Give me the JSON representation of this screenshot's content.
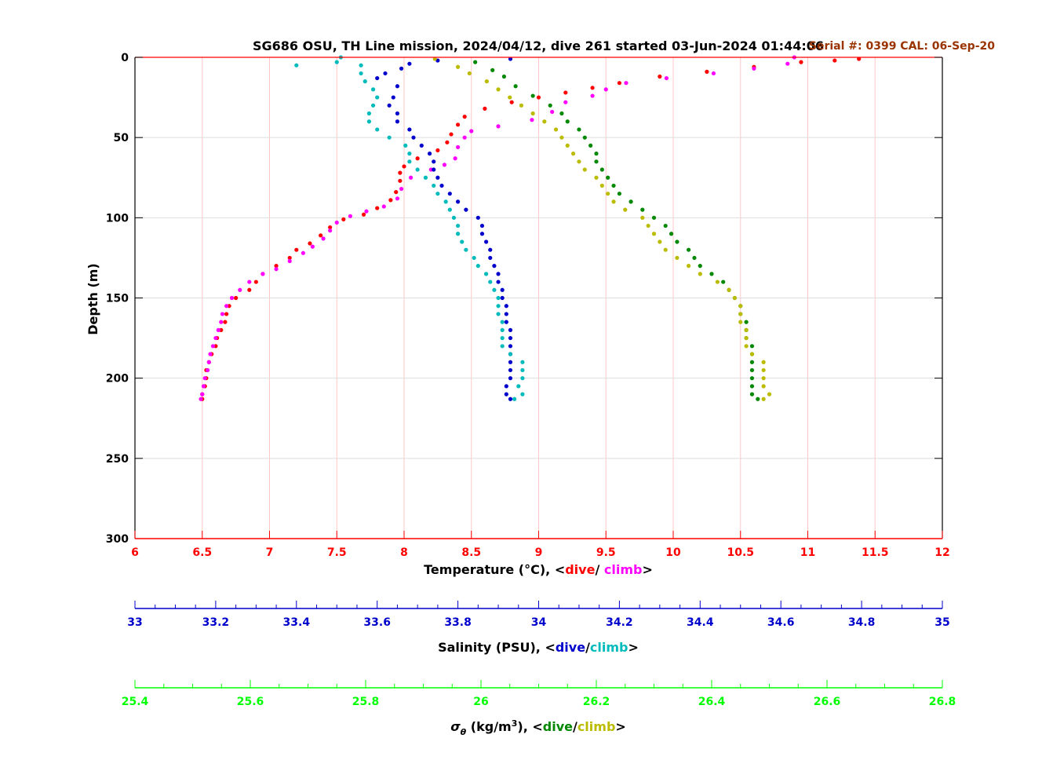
{
  "chart_data": {
    "type": "scatter",
    "title": "SG686 OSU, TH Line mission, 2024/04/12, dive 261 started 03-Jun-2024 01:44:06",
    "subtitle": "Serial #: 0399  CAL: 06-Sep-20",
    "ylabel": "Depth (m)",
    "ylim": [
      0,
      300
    ],
    "y_ticks": [
      "0",
      "50",
      "100",
      "150",
      "200",
      "250",
      "300"
    ],
    "y_reversed": true,
    "grid": true,
    "axes": [
      {
        "id": "temperature",
        "label_prefix": "Temperature (°C), <",
        "label_dive": "dive",
        "label_sep": "/ ",
        "label_climb": "climb",
        "label_suffix": ">",
        "xlim": [
          6,
          12
        ],
        "ticks": [
          "6",
          "6.5",
          "7",
          "7.5",
          "8",
          "8.5",
          "9",
          "9.5",
          "10",
          "10.5",
          "11",
          "11.5",
          "12"
        ],
        "color": "#ff0000"
      },
      {
        "id": "salinity",
        "label_prefix": "Salinity (PSU), <",
        "label_dive": "dive",
        "label_sep": "/",
        "label_climb": "climb",
        "label_suffix": ">",
        "xlim": [
          33,
          35
        ],
        "ticks": [
          "33",
          "33.2",
          "33.4",
          "33.6",
          "33.8",
          "34",
          "34.2",
          "34.4",
          "34.6",
          "34.8",
          "35"
        ],
        "color": "#0000cc"
      },
      {
        "id": "sigma",
        "label_symbol": "σ",
        "label_sub": "θ",
        "label_units": " (kg/m",
        "label_sup": "3",
        "label_close": "), <",
        "label_dive": "dive",
        "label_sep": "/",
        "label_climb": "climb",
        "label_suffix": ">",
        "xlim": [
          25.4,
          26.8
        ],
        "ticks": [
          "25.4",
          "25.6",
          "25.8",
          "26",
          "26.2",
          "26.4",
          "26.6",
          "26.8"
        ],
        "color": "#00ff00"
      }
    ],
    "series": [
      {
        "name": "dive",
        "axis": "temperature",
        "color": "#ff0000",
        "points": [
          [
            11.38,
            1
          ],
          [
            11.2,
            2
          ],
          [
            10.95,
            3
          ],
          [
            10.6,
            6
          ],
          [
            10.25,
            9
          ],
          [
            9.9,
            12
          ],
          [
            9.6,
            16
          ],
          [
            9.4,
            19
          ],
          [
            9.2,
            22
          ],
          [
            9.0,
            25
          ],
          [
            8.8,
            28
          ],
          [
            8.6,
            32
          ],
          [
            8.45,
            37
          ],
          [
            8.4,
            42
          ],
          [
            8.35,
            48
          ],
          [
            8.32,
            53
          ],
          [
            8.25,
            58
          ],
          [
            8.1,
            63
          ],
          [
            8.0,
            68
          ],
          [
            7.97,
            72
          ],
          [
            7.97,
            77
          ],
          [
            7.94,
            84
          ],
          [
            7.9,
            89
          ],
          [
            7.8,
            94
          ],
          [
            7.7,
            98
          ],
          [
            7.55,
            101
          ],
          [
            7.45,
            106
          ],
          [
            7.38,
            111
          ],
          [
            7.3,
            116
          ],
          [
            7.2,
            120
          ],
          [
            7.15,
            125
          ],
          [
            7.05,
            130
          ],
          [
            6.95,
            135
          ],
          [
            6.9,
            140
          ],
          [
            6.85,
            145
          ],
          [
            6.75,
            150
          ],
          [
            6.7,
            155
          ],
          [
            6.68,
            160
          ],
          [
            6.67,
            165
          ],
          [
            6.64,
            170
          ],
          [
            6.61,
            175
          ],
          [
            6.6,
            180
          ],
          [
            6.57,
            185
          ],
          [
            6.55,
            190
          ],
          [
            6.53,
            195
          ],
          [
            6.53,
            200
          ],
          [
            6.52,
            205
          ],
          [
            6.5,
            210
          ],
          [
            6.5,
            213
          ]
        ]
      },
      {
        "name": "climb",
        "axis": "temperature",
        "color": "#ff00ff",
        "points": [
          [
            10.9,
            0
          ],
          [
            10.85,
            4
          ],
          [
            10.6,
            7
          ],
          [
            10.3,
            10
          ],
          [
            9.95,
            13
          ],
          [
            9.65,
            16
          ],
          [
            9.5,
            20
          ],
          [
            9.4,
            24
          ],
          [
            9.2,
            28
          ],
          [
            9.1,
            34
          ],
          [
            8.95,
            39
          ],
          [
            8.7,
            43
          ],
          [
            8.5,
            46
          ],
          [
            8.45,
            50
          ],
          [
            8.4,
            56
          ],
          [
            8.38,
            63
          ],
          [
            8.3,
            67
          ],
          [
            8.2,
            70
          ],
          [
            8.05,
            75
          ],
          [
            7.98,
            82
          ],
          [
            7.95,
            88
          ],
          [
            7.85,
            93
          ],
          [
            7.72,
            96
          ],
          [
            7.6,
            99
          ],
          [
            7.5,
            103
          ],
          [
            7.45,
            108
          ],
          [
            7.4,
            113
          ],
          [
            7.32,
            118
          ],
          [
            7.25,
            122
          ],
          [
            7.15,
            127
          ],
          [
            7.05,
            132
          ],
          [
            6.95,
            135
          ],
          [
            6.85,
            140
          ],
          [
            6.78,
            145
          ],
          [
            6.72,
            150
          ],
          [
            6.68,
            155
          ],
          [
            6.65,
            160
          ],
          [
            6.64,
            165
          ],
          [
            6.62,
            170
          ],
          [
            6.6,
            175
          ],
          [
            6.58,
            180
          ],
          [
            6.56,
            185
          ],
          [
            6.55,
            190
          ],
          [
            6.54,
            195
          ],
          [
            6.52,
            200
          ],
          [
            6.51,
            205
          ],
          [
            6.5,
            210
          ],
          [
            6.49,
            213
          ]
        ]
      },
      {
        "name": "dive",
        "axis": "salinity",
        "color": "#0000cc",
        "points": [
          [
            33.93,
            1
          ],
          [
            33.75,
            2
          ],
          [
            33.68,
            4
          ],
          [
            33.66,
            7
          ],
          [
            33.62,
            10
          ],
          [
            33.6,
            13
          ],
          [
            33.65,
            18
          ],
          [
            33.64,
            25
          ],
          [
            33.63,
            30
          ],
          [
            33.65,
            35
          ],
          [
            33.65,
            40
          ],
          [
            33.68,
            45
          ],
          [
            33.69,
            50
          ],
          [
            33.71,
            55
          ],
          [
            33.73,
            60
          ],
          [
            33.74,
            65
          ],
          [
            33.74,
            70
          ],
          [
            33.75,
            75
          ],
          [
            33.76,
            80
          ],
          [
            33.78,
            85
          ],
          [
            33.8,
            90
          ],
          [
            33.82,
            95
          ],
          [
            33.85,
            100
          ],
          [
            33.86,
            105
          ],
          [
            33.86,
            110
          ],
          [
            33.87,
            115
          ],
          [
            33.88,
            120
          ],
          [
            33.88,
            125
          ],
          [
            33.89,
            130
          ],
          [
            33.9,
            135
          ],
          [
            33.9,
            140
          ],
          [
            33.91,
            145
          ],
          [
            33.91,
            150
          ],
          [
            33.92,
            155
          ],
          [
            33.92,
            160
          ],
          [
            33.92,
            165
          ],
          [
            33.93,
            170
          ],
          [
            33.93,
            175
          ],
          [
            33.93,
            180
          ],
          [
            33.93,
            185
          ],
          [
            33.93,
            190
          ],
          [
            33.93,
            195
          ],
          [
            33.93,
            200
          ],
          [
            33.92,
            205
          ],
          [
            33.92,
            210
          ],
          [
            33.93,
            213
          ]
        ]
      },
      {
        "name": "climb",
        "axis": "salinity",
        "color": "#00bbbb",
        "points": [
          [
            33.4,
            5
          ],
          [
            33.5,
            3
          ],
          [
            33.51,
            0
          ],
          [
            33.56,
            5
          ],
          [
            33.56,
            10
          ],
          [
            33.57,
            15
          ],
          [
            33.59,
            20
          ],
          [
            33.6,
            25
          ],
          [
            33.59,
            30
          ],
          [
            33.58,
            35
          ],
          [
            33.58,
            40
          ],
          [
            33.6,
            45
          ],
          [
            33.63,
            50
          ],
          [
            33.67,
            55
          ],
          [
            33.68,
            60
          ],
          [
            33.68,
            65
          ],
          [
            33.7,
            70
          ],
          [
            33.72,
            75
          ],
          [
            33.74,
            80
          ],
          [
            33.75,
            85
          ],
          [
            33.77,
            90
          ],
          [
            33.78,
            95
          ],
          [
            33.79,
            100
          ],
          [
            33.8,
            105
          ],
          [
            33.8,
            110
          ],
          [
            33.81,
            115
          ],
          [
            33.82,
            120
          ],
          [
            33.84,
            125
          ],
          [
            33.85,
            130
          ],
          [
            33.87,
            135
          ],
          [
            33.88,
            140
          ],
          [
            33.89,
            145
          ],
          [
            33.9,
            150
          ],
          [
            33.9,
            155
          ],
          [
            33.9,
            160
          ],
          [
            33.91,
            165
          ],
          [
            33.91,
            170
          ],
          [
            33.91,
            175
          ],
          [
            33.91,
            180
          ],
          [
            33.93,
            185
          ],
          [
            33.96,
            190
          ],
          [
            33.96,
            195
          ],
          [
            33.96,
            200
          ],
          [
            33.95,
            205
          ],
          [
            33.96,
            210
          ],
          [
            33.94,
            213
          ]
        ]
      },
      {
        "name": "dive",
        "axis": "sigma",
        "color": "#008800",
        "points": [
          [
            25.99,
            3
          ],
          [
            26.02,
            8
          ],
          [
            26.04,
            12
          ],
          [
            26.06,
            18
          ],
          [
            26.09,
            24
          ],
          [
            26.12,
            30
          ],
          [
            26.14,
            35
          ],
          [
            26.15,
            40
          ],
          [
            26.17,
            45
          ],
          [
            26.18,
            50
          ],
          [
            26.19,
            55
          ],
          [
            26.2,
            60
          ],
          [
            26.2,
            65
          ],
          [
            26.21,
            70
          ],
          [
            26.22,
            75
          ],
          [
            26.23,
            80
          ],
          [
            26.24,
            85
          ],
          [
            26.26,
            90
          ],
          [
            26.28,
            95
          ],
          [
            26.3,
            100
          ],
          [
            26.32,
            105
          ],
          [
            26.33,
            110
          ],
          [
            26.34,
            115
          ],
          [
            26.36,
            120
          ],
          [
            26.37,
            125
          ],
          [
            26.38,
            130
          ],
          [
            26.4,
            135
          ],
          [
            26.42,
            140
          ],
          [
            26.43,
            145
          ],
          [
            26.44,
            150
          ],
          [
            26.45,
            155
          ],
          [
            26.45,
            160
          ],
          [
            26.46,
            165
          ],
          [
            26.46,
            170
          ],
          [
            26.46,
            175
          ],
          [
            26.47,
            180
          ],
          [
            26.47,
            185
          ],
          [
            26.47,
            190
          ],
          [
            26.47,
            195
          ],
          [
            26.47,
            200
          ],
          [
            26.47,
            205
          ],
          [
            26.47,
            210
          ],
          [
            26.48,
            213
          ]
        ]
      },
      {
        "name": "climb",
        "axis": "sigma",
        "color": "#bbbb00",
        "points": [
          [
            25.92,
            1
          ],
          [
            25.96,
            6
          ],
          [
            25.98,
            10
          ],
          [
            26.01,
            15
          ],
          [
            26.03,
            20
          ],
          [
            26.05,
            25
          ],
          [
            26.07,
            30
          ],
          [
            26.09,
            35
          ],
          [
            26.11,
            40
          ],
          [
            26.13,
            45
          ],
          [
            26.14,
            50
          ],
          [
            26.15,
            55
          ],
          [
            26.16,
            60
          ],
          [
            26.17,
            65
          ],
          [
            26.18,
            70
          ],
          [
            26.2,
            75
          ],
          [
            26.21,
            80
          ],
          [
            26.22,
            85
          ],
          [
            26.23,
            90
          ],
          [
            26.25,
            95
          ],
          [
            26.28,
            100
          ],
          [
            26.29,
            105
          ],
          [
            26.3,
            110
          ],
          [
            26.31,
            115
          ],
          [
            26.32,
            120
          ],
          [
            26.34,
            125
          ],
          [
            26.36,
            130
          ],
          [
            26.38,
            135
          ],
          [
            26.41,
            140
          ],
          [
            26.43,
            145
          ],
          [
            26.44,
            150
          ],
          [
            26.45,
            155
          ],
          [
            26.45,
            160
          ],
          [
            26.45,
            165
          ],
          [
            26.46,
            170
          ],
          [
            26.46,
            175
          ],
          [
            26.46,
            180
          ],
          [
            26.47,
            185
          ],
          [
            26.49,
            190
          ],
          [
            26.49,
            195
          ],
          [
            26.49,
            200
          ],
          [
            26.49,
            205
          ],
          [
            26.5,
            210
          ],
          [
            26.49,
            213
          ]
        ]
      }
    ]
  }
}
